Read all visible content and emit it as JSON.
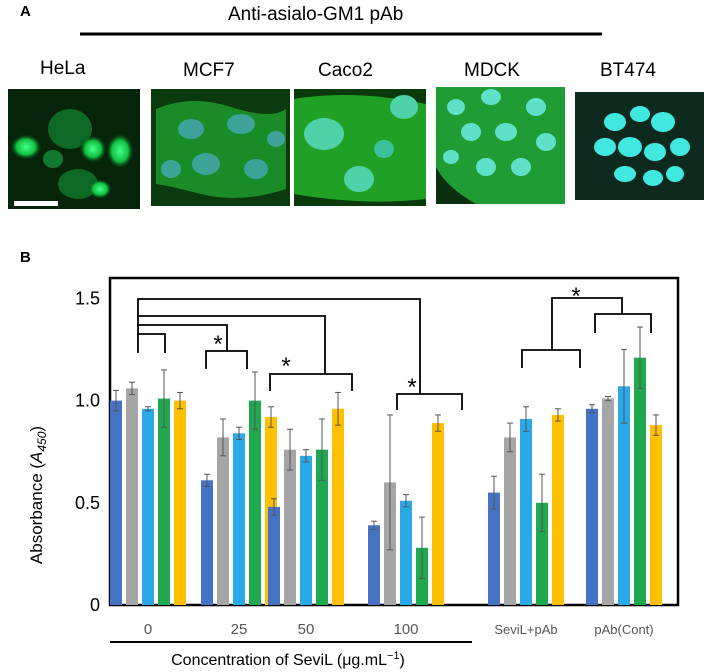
{
  "panel_a": {
    "label": "A",
    "header": "Anti-asialo-GM1 pAb",
    "cells": [
      {
        "name": "HeLa",
        "style": "hela"
      },
      {
        "name": "MCF7",
        "style": "mcf7"
      },
      {
        "name": "Caco2",
        "style": "caco2"
      },
      {
        "name": "MDCK",
        "style": "mdck"
      },
      {
        "name": "BT474",
        "style": "bt474"
      }
    ]
  },
  "panel_b": {
    "label": "B",
    "significance_marker": "*"
  },
  "chart_data": {
    "type": "bar",
    "ylabel": "Absorbance (A450)",
    "ylabel_main": "Absorbance (",
    "ylabel_sym": "A",
    "ylabel_sub": "450",
    "ylabel_close": ")",
    "xlabel": "Concentration of SeviL (μg.mL−1)",
    "xlabel_main": "Concentration of SeviL (",
    "xlabel_unit": "μg.mL",
    "xlabel_sup": "−1",
    "xlabel_close": ")",
    "ylim": [
      0,
      1.6
    ],
    "yticks": [
      0,
      0.5,
      1.0,
      1.5
    ],
    "ytick_labels": [
      "0",
      "0.5",
      "1.0",
      "1.5"
    ],
    "categories": [
      "0",
      "25",
      "50",
      "100",
      "SeviL+pAb",
      "pAb(Cont)"
    ],
    "bar_colors": [
      "#4472c4",
      "#a5a5a5",
      "#2aa9e8",
      "#1fa84f",
      "#ffc000"
    ],
    "values": [
      [
        1.0,
        1.06,
        0.96,
        1.01,
        1.0
      ],
      [
        0.61,
        0.82,
        0.84,
        1.0,
        0.92
      ],
      [
        0.48,
        0.76,
        0.73,
        0.76,
        0.96
      ],
      [
        0.39,
        0.6,
        0.51,
        0.28,
        0.89
      ],
      [
        0.55,
        0.82,
        0.91,
        0.5,
        0.93
      ],
      [
        0.96,
        1.01,
        1.07,
        1.21,
        0.88
      ]
    ],
    "errors": [
      [
        0.05,
        0.03,
        0.01,
        0.14,
        0.04
      ],
      [
        0.03,
        0.09,
        0.03,
        0.14,
        0.05
      ],
      [
        0.04,
        0.1,
        0.03,
        0.15,
        0.08
      ],
      [
        0.02,
        0.33,
        0.03,
        0.15,
        0.04
      ],
      [
        0.08,
        0.07,
        0.06,
        0.14,
        0.03
      ],
      [
        0.02,
        0.01,
        0.18,
        0.15,
        0.05
      ]
    ]
  }
}
